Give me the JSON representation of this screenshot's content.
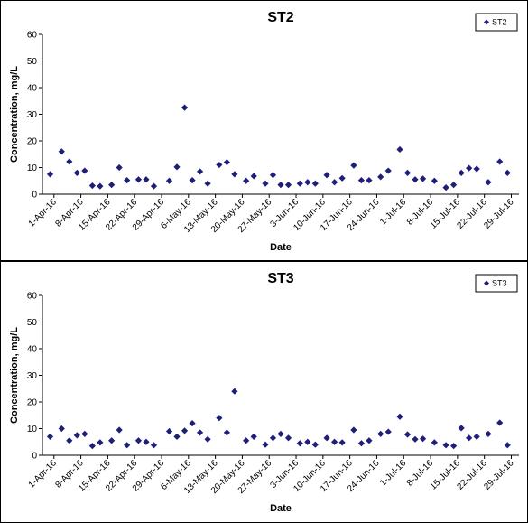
{
  "chart_data": [
    {
      "type": "scatter",
      "title": "ST2",
      "xlabel": "Date",
      "ylabel": "Concentration, mg/L",
      "ylim": [
        0,
        60
      ],
      "yticks": [
        "0",
        "10",
        "20",
        "30",
        "40",
        "50",
        "60"
      ],
      "xlim": [
        "2016-03-29",
        "2016-07-31"
      ],
      "xticks": [
        {
          "label": "1-Apr-16",
          "date": "2016-04-01"
        },
        {
          "label": "8-Apr-16",
          "date": "2016-04-08"
        },
        {
          "label": "15-Apr-16",
          "date": "2016-04-15"
        },
        {
          "label": "22-Apr-16",
          "date": "2016-04-22"
        },
        {
          "label": "29-Apr-16",
          "date": "2016-04-29"
        },
        {
          "label": "6-May-16",
          "date": "2016-05-06"
        },
        {
          "label": "13-May-16",
          "date": "2016-05-13"
        },
        {
          "label": "20-May-16",
          "date": "2016-05-20"
        },
        {
          "label": "27-May-16",
          "date": "2016-05-27"
        },
        {
          "label": "3-Jun-16",
          "date": "2016-06-03"
        },
        {
          "label": "10-Jun-16",
          "date": "2016-06-10"
        },
        {
          "label": "17-Jun-16",
          "date": "2016-06-17"
        },
        {
          "label": "24-Jun-16",
          "date": "2016-06-24"
        },
        {
          "label": "1-Jul-16",
          "date": "2016-07-01"
        },
        {
          "label": "8-Jul-16",
          "date": "2016-07-08"
        },
        {
          "label": "15-Jul-16",
          "date": "2016-07-15"
        },
        {
          "label": "22-Jul-16",
          "date": "2016-07-22"
        },
        {
          "label": "29-Jul-16",
          "date": "2016-07-29"
        }
      ],
      "legend": "top-right",
      "series": [
        {
          "name": "ST2",
          "color": "#1f1f7a",
          "points": [
            {
              "x": "2016-03-31",
              "y": 7.5
            },
            {
              "x": "2016-04-03",
              "y": 16.0
            },
            {
              "x": "2016-04-05",
              "y": 12.2
            },
            {
              "x": "2016-04-07",
              "y": 8.0
            },
            {
              "x": "2016-04-09",
              "y": 8.8
            },
            {
              "x": "2016-04-11",
              "y": 3.2
            },
            {
              "x": "2016-04-13",
              "y": 3.0
            },
            {
              "x": "2016-04-16",
              "y": 3.5
            },
            {
              "x": "2016-04-18",
              "y": 10.0
            },
            {
              "x": "2016-04-20",
              "y": 5.2
            },
            {
              "x": "2016-04-23",
              "y": 5.5
            },
            {
              "x": "2016-04-25",
              "y": 5.5
            },
            {
              "x": "2016-04-27",
              "y": 3.0
            },
            {
              "x": "2016-05-01",
              "y": 5.0
            },
            {
              "x": "2016-05-03",
              "y": 10.2
            },
            {
              "x": "2016-05-05",
              "y": 32.5
            },
            {
              "x": "2016-05-07",
              "y": 5.2
            },
            {
              "x": "2016-05-09",
              "y": 8.5
            },
            {
              "x": "2016-05-11",
              "y": 4.0
            },
            {
              "x": "2016-05-14",
              "y": 11.0
            },
            {
              "x": "2016-05-16",
              "y": 12.0
            },
            {
              "x": "2016-05-18",
              "y": 7.5
            },
            {
              "x": "2016-05-21",
              "y": 5.0
            },
            {
              "x": "2016-05-23",
              "y": 6.8
            },
            {
              "x": "2016-05-26",
              "y": 4.0
            },
            {
              "x": "2016-05-28",
              "y": 7.2
            },
            {
              "x": "2016-05-30",
              "y": 3.5
            },
            {
              "x": "2016-06-01",
              "y": 3.5
            },
            {
              "x": "2016-06-04",
              "y": 4.0
            },
            {
              "x": "2016-06-06",
              "y": 4.5
            },
            {
              "x": "2016-06-08",
              "y": 4.0
            },
            {
              "x": "2016-06-11",
              "y": 7.2
            },
            {
              "x": "2016-06-13",
              "y": 4.5
            },
            {
              "x": "2016-06-15",
              "y": 6.0
            },
            {
              "x": "2016-06-18",
              "y": 10.8
            },
            {
              "x": "2016-06-20",
              "y": 5.2
            },
            {
              "x": "2016-06-22",
              "y": 5.2
            },
            {
              "x": "2016-06-25",
              "y": 6.5
            },
            {
              "x": "2016-06-27",
              "y": 8.8
            },
            {
              "x": "2016-06-30",
              "y": 16.8
            },
            {
              "x": "2016-07-02",
              "y": 8.0
            },
            {
              "x": "2016-07-04",
              "y": 5.5
            },
            {
              "x": "2016-07-06",
              "y": 5.8
            },
            {
              "x": "2016-07-09",
              "y": 5.0
            },
            {
              "x": "2016-07-12",
              "y": 2.5
            },
            {
              "x": "2016-07-14",
              "y": 3.5
            },
            {
              "x": "2016-07-16",
              "y": 8.0
            },
            {
              "x": "2016-07-18",
              "y": 9.8
            },
            {
              "x": "2016-07-20",
              "y": 9.5
            },
            {
              "x": "2016-07-23",
              "y": 4.5
            },
            {
              "x": "2016-07-26",
              "y": 12.2
            },
            {
              "x": "2016-07-28",
              "y": 8.0
            }
          ]
        }
      ]
    },
    {
      "type": "scatter",
      "title": "ST3",
      "xlabel": "Date",
      "ylabel": "Concentration, mg/L",
      "ylim": [
        0,
        60
      ],
      "yticks": [
        "0",
        "10",
        "20",
        "30",
        "40",
        "50",
        "60"
      ],
      "xlim": [
        "2016-03-29",
        "2016-07-31"
      ],
      "xticks": [
        {
          "label": "1-Apr-16",
          "date": "2016-04-01"
        },
        {
          "label": "8-Apr-16",
          "date": "2016-04-08"
        },
        {
          "label": "15-Apr-16",
          "date": "2016-04-15"
        },
        {
          "label": "22-Apr-16",
          "date": "2016-04-22"
        },
        {
          "label": "29-Apr-16",
          "date": "2016-04-29"
        },
        {
          "label": "6-May-16",
          "date": "2016-05-06"
        },
        {
          "label": "13-May-16",
          "date": "2016-05-13"
        },
        {
          "label": "20-May-16",
          "date": "2016-05-20"
        },
        {
          "label": "27-May-16",
          "date": "2016-05-27"
        },
        {
          "label": "3-Jun-16",
          "date": "2016-06-03"
        },
        {
          "label": "10-Jun-16",
          "date": "2016-06-10"
        },
        {
          "label": "17-Jun-16",
          "date": "2016-06-17"
        },
        {
          "label": "24-Jun-16",
          "date": "2016-06-24"
        },
        {
          "label": "1-Jul-16",
          "date": "2016-07-01"
        },
        {
          "label": "8-Jul-16",
          "date": "2016-07-08"
        },
        {
          "label": "15-Jul-16",
          "date": "2016-07-15"
        },
        {
          "label": "22-Jul-16",
          "date": "2016-07-22"
        },
        {
          "label": "29-Jul-16",
          "date": "2016-07-29"
        }
      ],
      "legend": "top-right",
      "series": [
        {
          "name": "ST3",
          "color": "#1f1f7a",
          "points": [
            {
              "x": "2016-03-31",
              "y": 7.0
            },
            {
              "x": "2016-04-03",
              "y": 10.0
            },
            {
              "x": "2016-04-05",
              "y": 5.5
            },
            {
              "x": "2016-04-07",
              "y": 7.5
            },
            {
              "x": "2016-04-09",
              "y": 8.0
            },
            {
              "x": "2016-04-11",
              "y": 3.5
            },
            {
              "x": "2016-04-13",
              "y": 4.8
            },
            {
              "x": "2016-04-16",
              "y": 5.5
            },
            {
              "x": "2016-04-18",
              "y": 9.5
            },
            {
              "x": "2016-04-20",
              "y": 3.8
            },
            {
              "x": "2016-04-23",
              "y": 5.5
            },
            {
              "x": "2016-04-25",
              "y": 5.0
            },
            {
              "x": "2016-04-27",
              "y": 3.8
            },
            {
              "x": "2016-05-01",
              "y": 9.0
            },
            {
              "x": "2016-05-03",
              "y": 7.0
            },
            {
              "x": "2016-05-05",
              "y": 9.2
            },
            {
              "x": "2016-05-07",
              "y": 12.0
            },
            {
              "x": "2016-05-09",
              "y": 8.5
            },
            {
              "x": "2016-05-11",
              "y": 6.0
            },
            {
              "x": "2016-05-14",
              "y": 14.0
            },
            {
              "x": "2016-05-16",
              "y": 8.5
            },
            {
              "x": "2016-05-18",
              "y": 24.0
            },
            {
              "x": "2016-05-21",
              "y": 5.5
            },
            {
              "x": "2016-05-23",
              "y": 7.0
            },
            {
              "x": "2016-05-26",
              "y": 4.0
            },
            {
              "x": "2016-05-28",
              "y": 6.5
            },
            {
              "x": "2016-05-30",
              "y": 8.0
            },
            {
              "x": "2016-06-01",
              "y": 6.5
            },
            {
              "x": "2016-06-04",
              "y": 4.5
            },
            {
              "x": "2016-06-06",
              "y": 5.0
            },
            {
              "x": "2016-06-08",
              "y": 4.0
            },
            {
              "x": "2016-06-11",
              "y": 6.5
            },
            {
              "x": "2016-06-13",
              "y": 5.0
            },
            {
              "x": "2016-06-15",
              "y": 4.8
            },
            {
              "x": "2016-06-18",
              "y": 9.5
            },
            {
              "x": "2016-06-20",
              "y": 4.5
            },
            {
              "x": "2016-06-22",
              "y": 5.5
            },
            {
              "x": "2016-06-25",
              "y": 8.0
            },
            {
              "x": "2016-06-27",
              "y": 8.8
            },
            {
              "x": "2016-06-30",
              "y": 14.5
            },
            {
              "x": "2016-07-02",
              "y": 7.8
            },
            {
              "x": "2016-07-04",
              "y": 6.0
            },
            {
              "x": "2016-07-06",
              "y": 6.2
            },
            {
              "x": "2016-07-09",
              "y": 4.8
            },
            {
              "x": "2016-07-12",
              "y": 3.8
            },
            {
              "x": "2016-07-14",
              "y": 3.5
            },
            {
              "x": "2016-07-16",
              "y": 10.2
            },
            {
              "x": "2016-07-18",
              "y": 6.5
            },
            {
              "x": "2016-07-20",
              "y": 7.0
            },
            {
              "x": "2016-07-23",
              "y": 8.0
            },
            {
              "x": "2016-07-26",
              "y": 12.2
            },
            {
              "x": "2016-07-28",
              "y": 3.8
            }
          ]
        }
      ]
    }
  ]
}
